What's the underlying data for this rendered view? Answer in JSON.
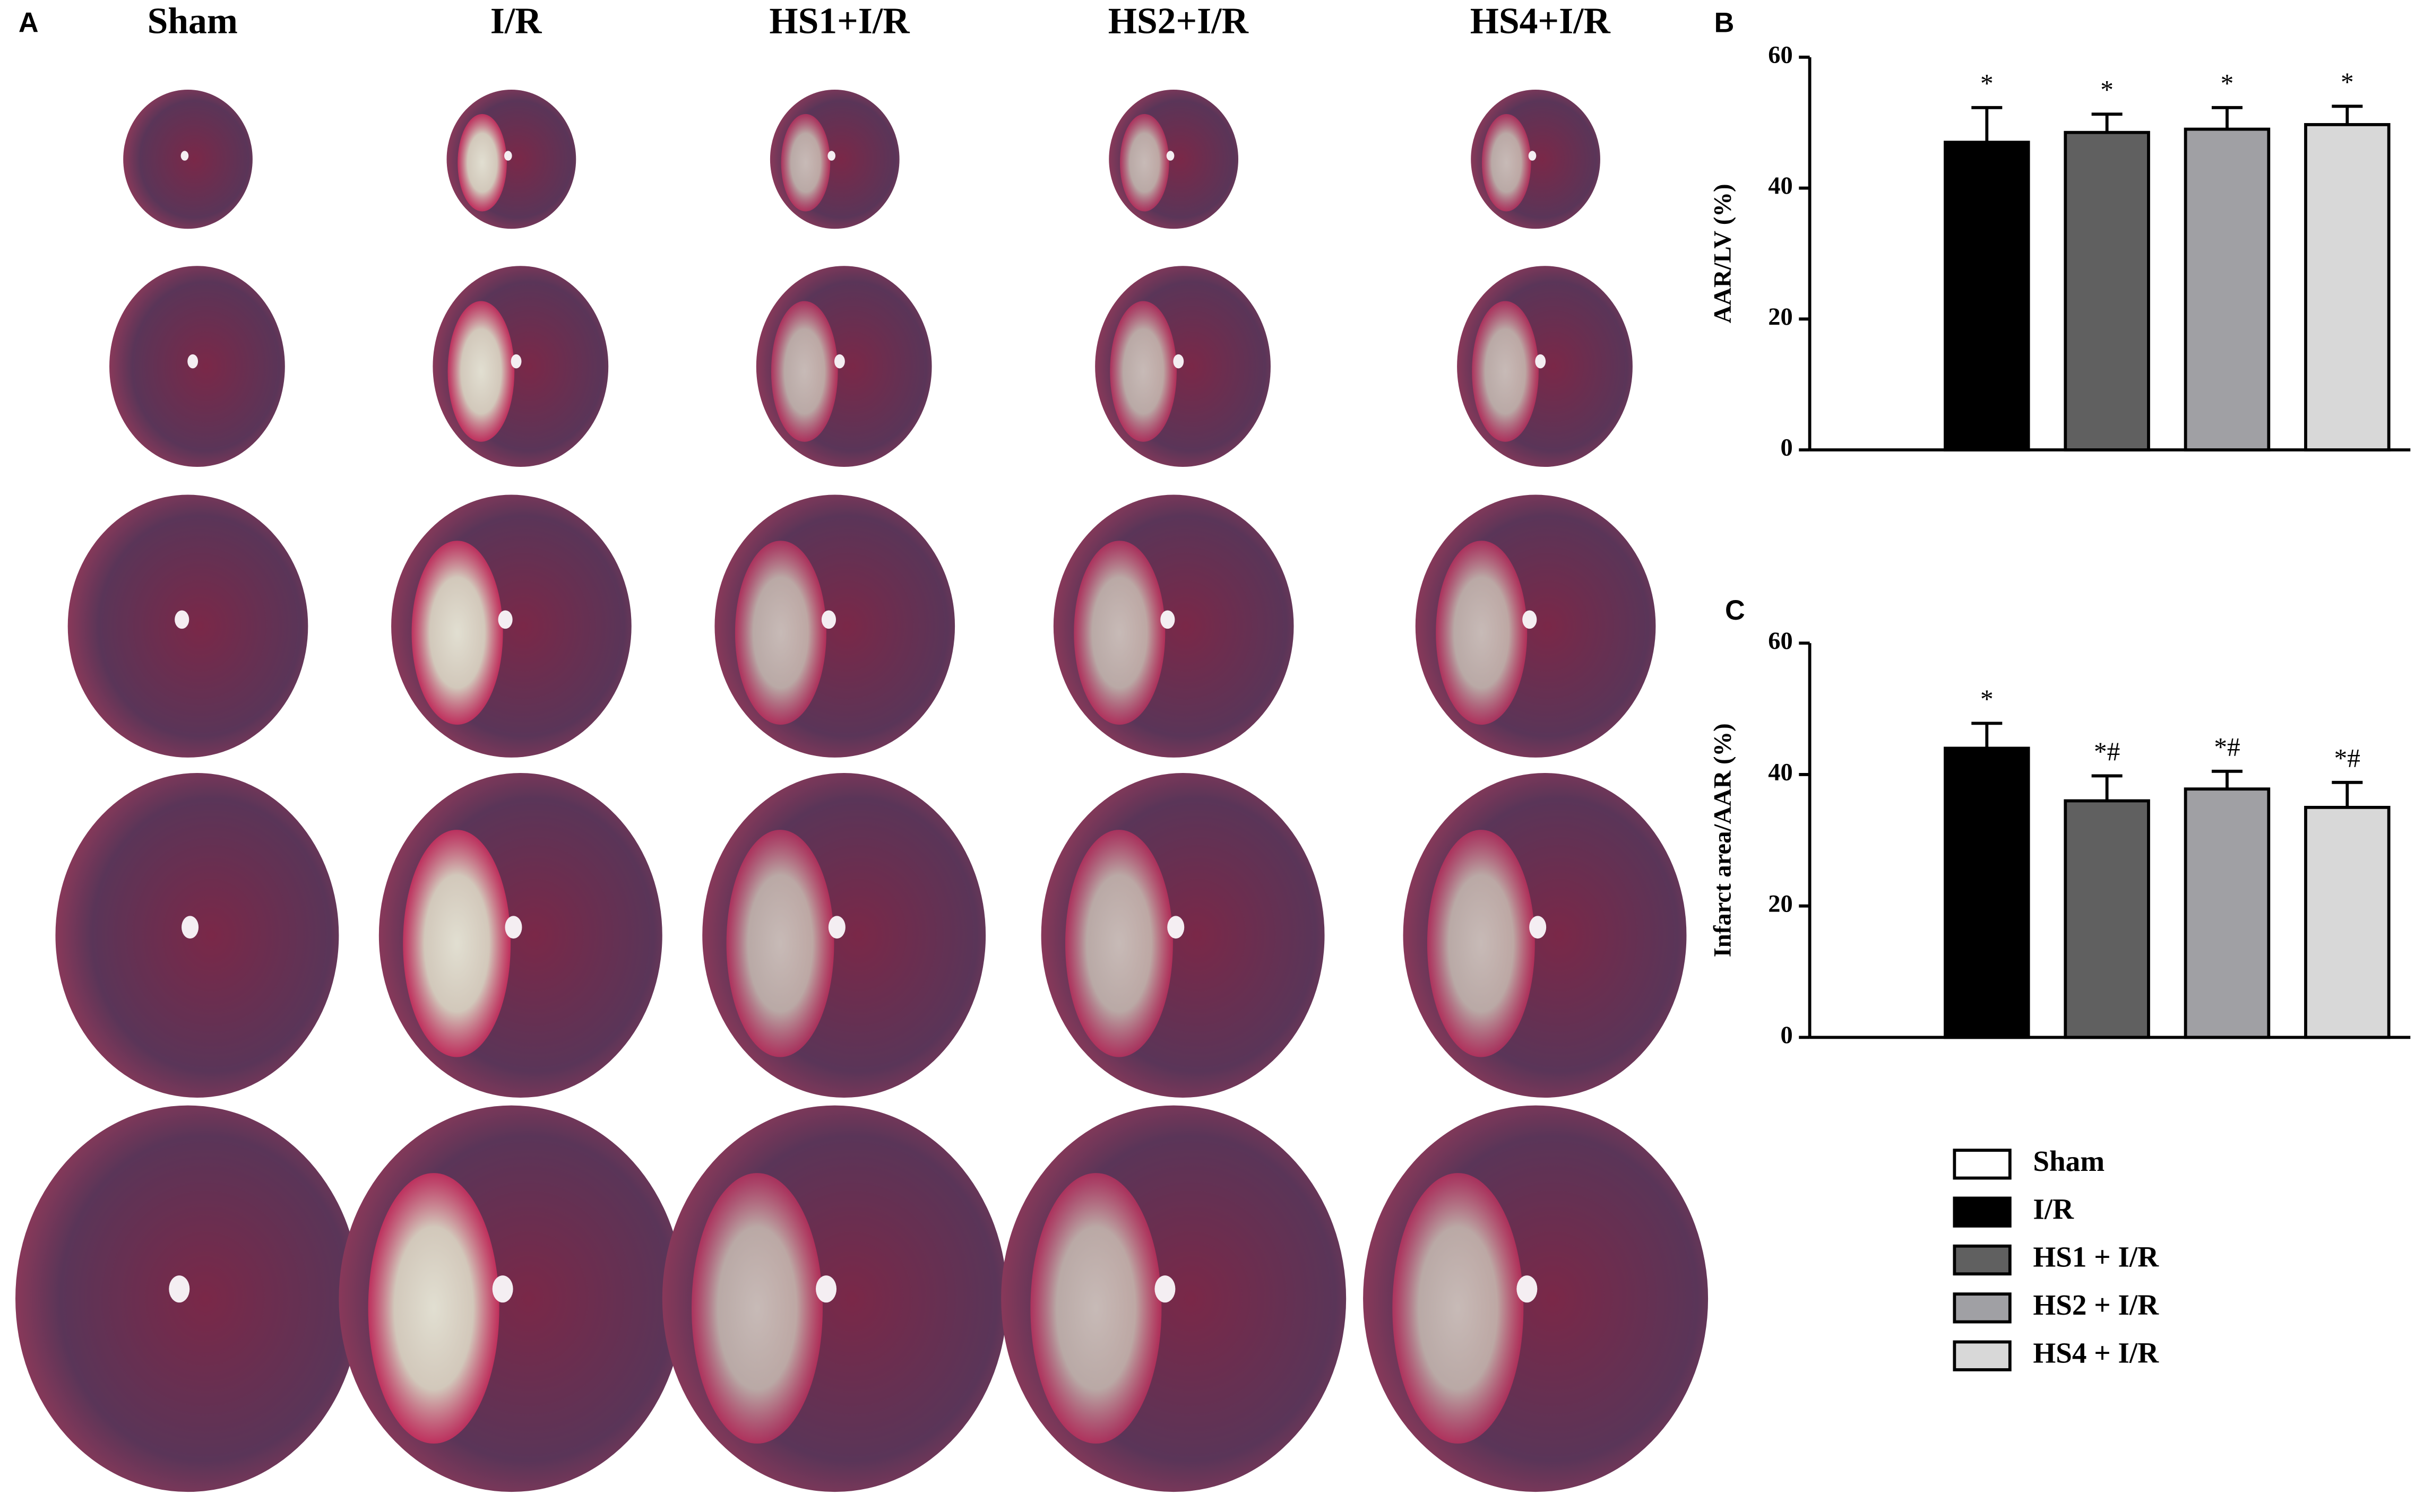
{
  "photo_panel": {
    "label": "A",
    "columns": [
      "Sham",
      "I/R",
      "HS1+I/R",
      "HS2+I/R",
      "HS4+I/R"
    ]
  },
  "legend": {
    "position": "bottom-right",
    "entries": [
      {
        "name": "Sham",
        "color": "#ffffff"
      },
      {
        "name": "I/R",
        "color": "#000000"
      },
      {
        "name": "HS1 + I/R",
        "color": "#606060"
      },
      {
        "name": "HS2 + I/R",
        "color": "#a0a0a4"
      },
      {
        "name": "HS4 + I/R",
        "color": "#d8d8d8"
      }
    ]
  },
  "chart_data": [
    {
      "type": "bar",
      "panel_label": "B",
      "ylabel": "AAR/LV (%)",
      "values": [
        0,
        47,
        48.5,
        49,
        49.7
      ],
      "errors": [
        0,
        5.3,
        2.8,
        3.3,
        2.8
      ],
      "annotations": [
        null,
        "*",
        "*",
        "*",
        "*"
      ],
      "ylim": [
        0,
        60
      ],
      "yticks": [
        0,
        20,
        40,
        60
      ]
    },
    {
      "type": "bar",
      "panel_label": "C",
      "ylabel": "Infarct area/AAR (%)",
      "values": [
        0,
        44,
        36,
        37.8,
        35
      ],
      "errors": [
        0,
        3.8,
        3.8,
        2.7,
        3.8
      ],
      "annotations": [
        null,
        "*",
        "*#",
        "*#",
        "*#"
      ],
      "ylim": [
        0,
        60
      ],
      "yticks": [
        0,
        20,
        40,
        60
      ]
    }
  ]
}
